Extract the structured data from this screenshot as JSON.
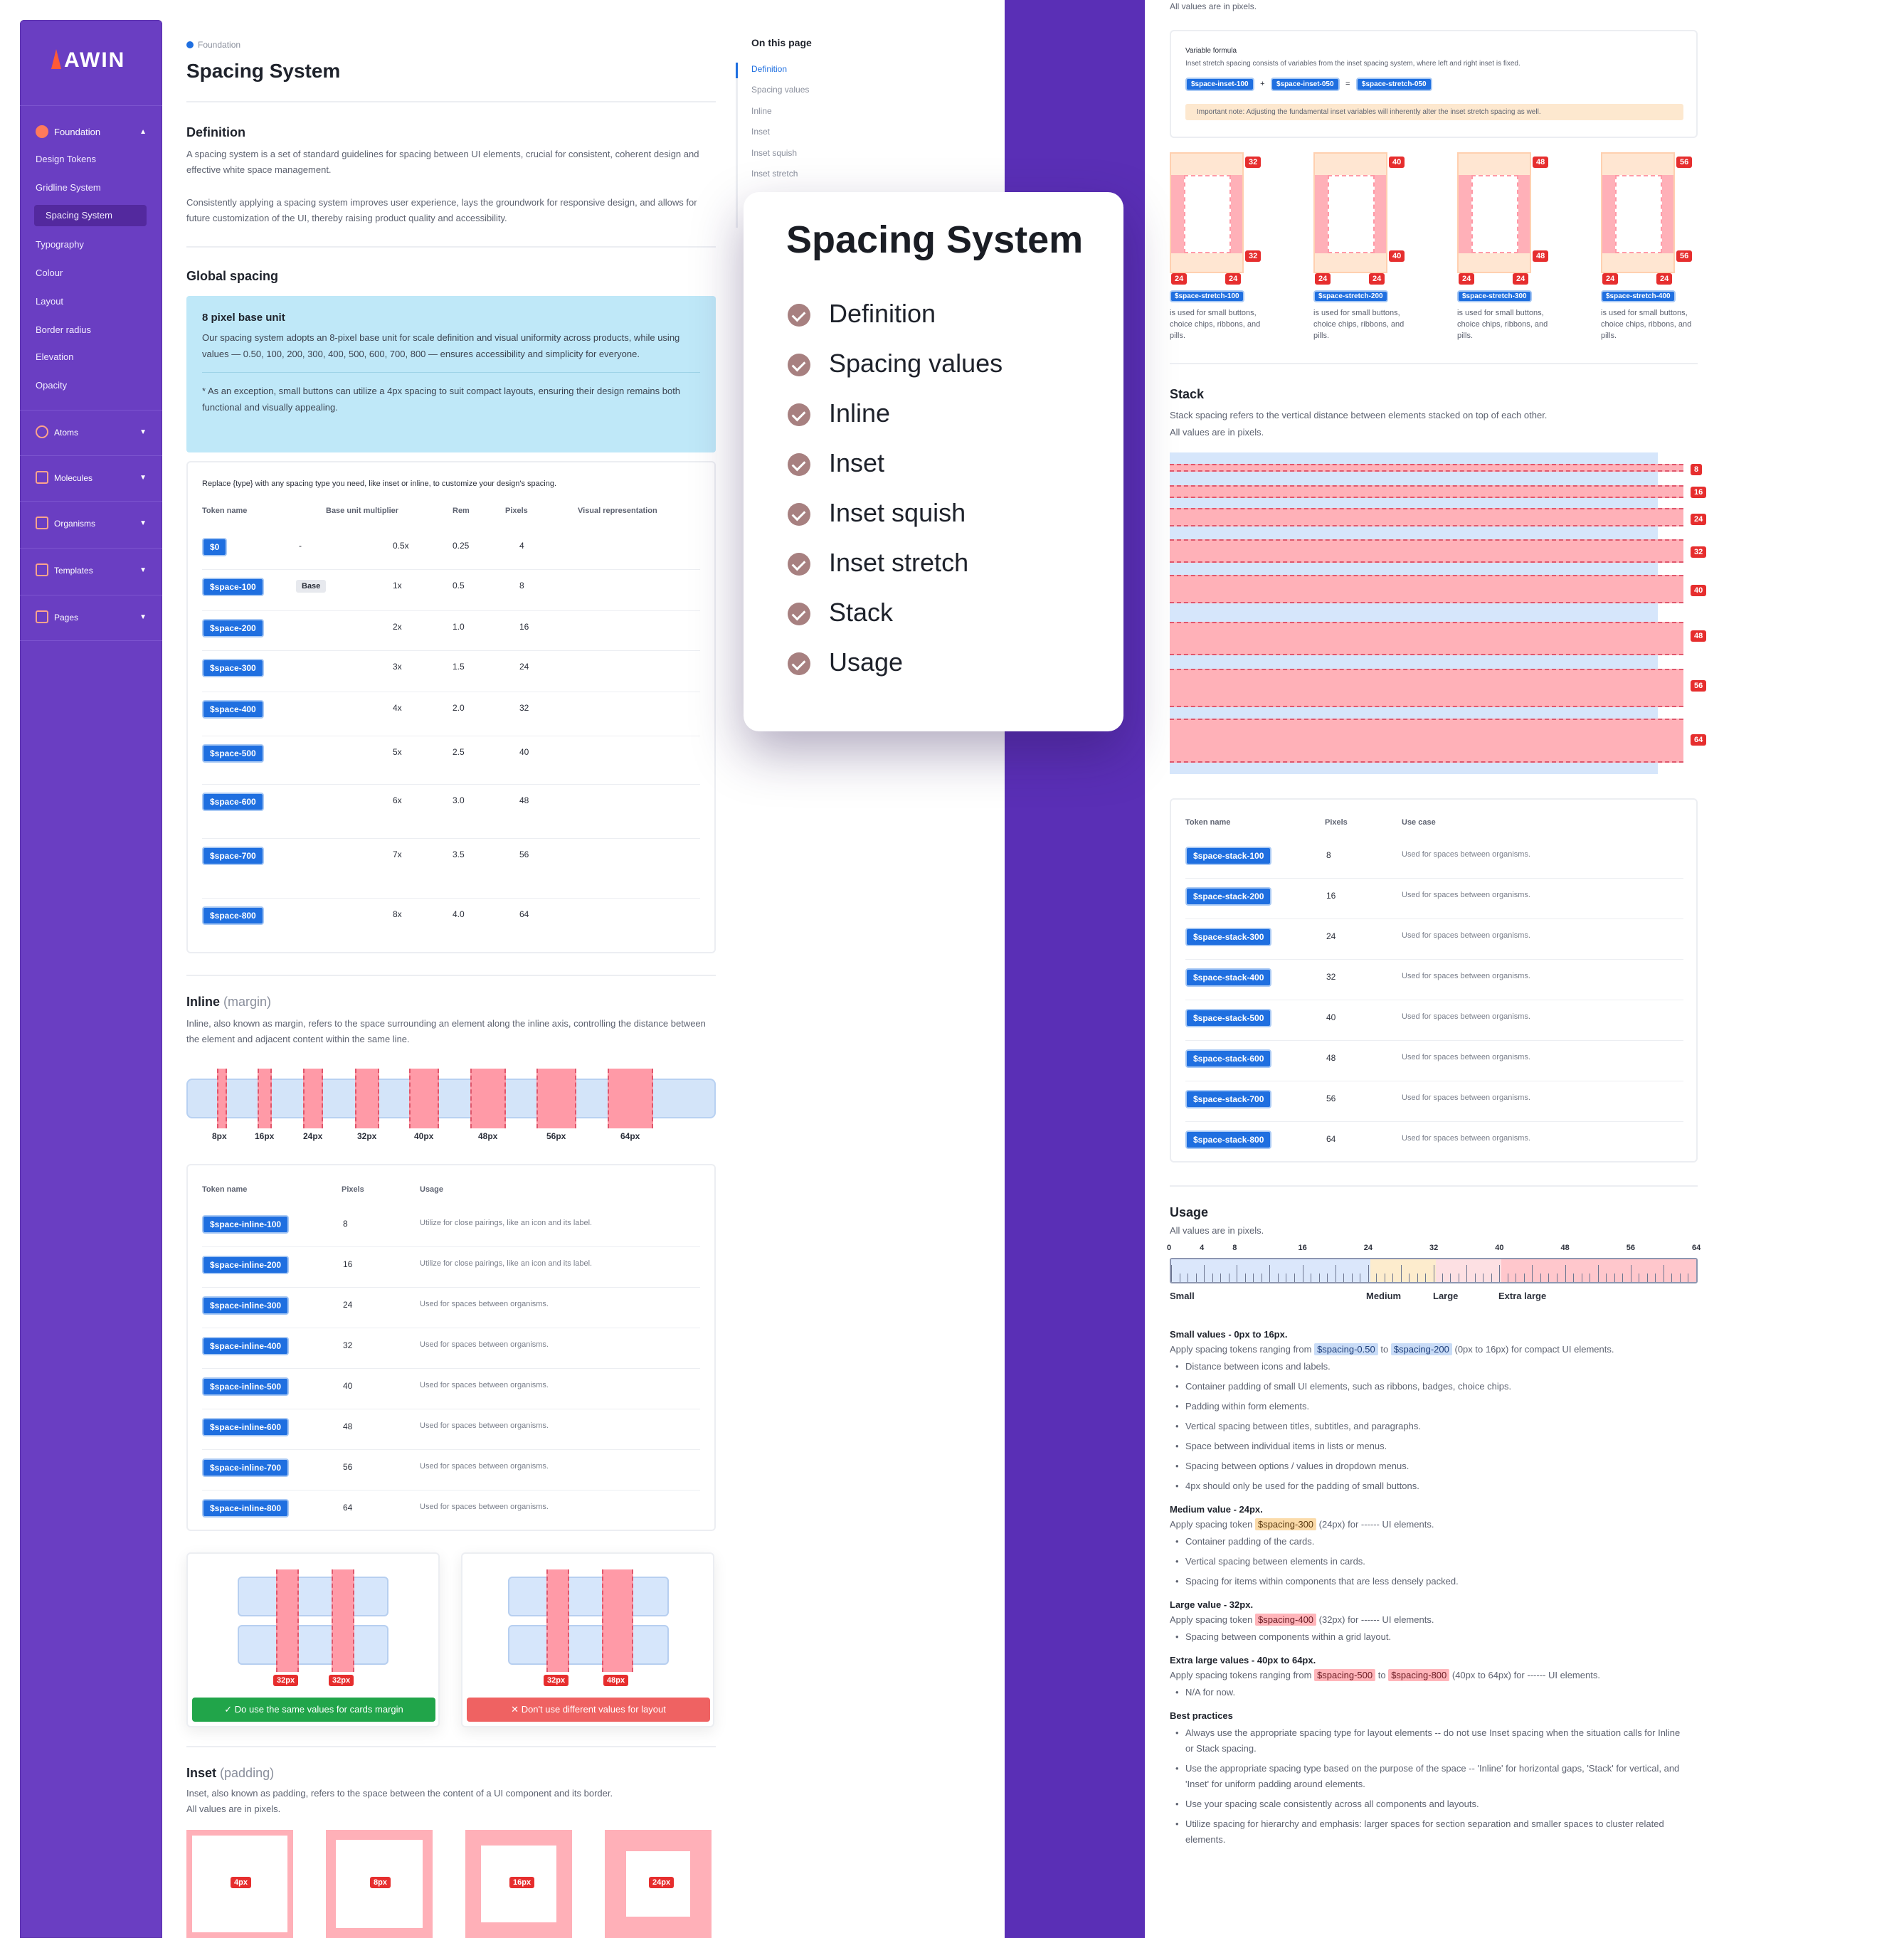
{
  "sidebar": {
    "logo": "AWIN",
    "foundation": "Foundation",
    "items": [
      "Design Tokens",
      "Gridline System",
      "Spacing System",
      "Typography",
      "Colour",
      "Layout",
      "Border radius",
      "Elevation",
      "Opacity"
    ],
    "groups": [
      "Atoms",
      "Molecules",
      "Organisms",
      "Templates",
      "Pages"
    ]
  },
  "breadcrumb": "Foundation",
  "title": "Spacing System",
  "definition": {
    "heading": "Definition",
    "p1": "A spacing system is a set of standard guidelines for spacing between UI elements, crucial for consistent, coherent design and effective white space management.",
    "p2": "Consistently applying a spacing system improves user experience, lays the groundwork for responsive design, and allows for future customization of the UI, thereby raising product quality and accessibility."
  },
  "global": {
    "heading": "Global spacing",
    "info_title": "8 pixel base unit",
    "info_body": "Our spacing system adopts an 8-pixel base unit for scale definition and visual uniformity across products, while using values — 0.50, 100, 200, 300, 400, 500, 600, 700, 800 — ensures accessibility and simplicity for everyone.",
    "info_note": "* As an exception, small buttons can utilize a 4px spacing to suit compact layouts, ensuring their design remains both functional and visually appealing.",
    "table_intro": "Replace {type} with any spacing type you need, like inset or inline, to customize your design's spacing.",
    "headers": [
      "Token name",
      "Base unit multiplier",
      "Rem",
      "Pixels",
      "Visual representation"
    ],
    "rows": [
      [
        "$0",
        "-",
        "0.5x",
        "0.25",
        "4"
      ],
      [
        "$space-100",
        "Base",
        "1x",
        "0.5",
        "8"
      ],
      [
        "$space-200",
        "",
        "2x",
        "1.0",
        "16"
      ],
      [
        "$space-300",
        "",
        "3x",
        "1.5",
        "24"
      ],
      [
        "$space-400",
        "",
        "4x",
        "2.0",
        "32"
      ],
      [
        "$space-500",
        "",
        "5x",
        "2.5",
        "40"
      ],
      [
        "$space-600",
        "",
        "6x",
        "3.0",
        "48"
      ],
      [
        "$space-700",
        "",
        "7x",
        "3.5",
        "56"
      ],
      [
        "$space-800",
        "",
        "8x",
        "4.0",
        "64"
      ]
    ]
  },
  "inline": {
    "heading": "Inline",
    "heading_muted": "(margin)",
    "desc": "Inline, also known as margin, refers to the space surrounding an element along the inline axis, controlling the distance between the element and adjacent content within the same line.",
    "labels": [
      "8px",
      "16px",
      "24px",
      "32px",
      "40px",
      "48px",
      "56px",
      "64px"
    ],
    "headers": [
      "Token name",
      "Pixels",
      "Usage"
    ],
    "rows": [
      [
        "$space-inline-100",
        "8",
        "Utilize for close pairings, like an icon and its label."
      ],
      [
        "$space-inline-200",
        "16",
        "Utilize for close pairings, like an icon and its label."
      ],
      [
        "$space-inline-300",
        "24",
        "Used for spaces between organisms."
      ],
      [
        "$space-inline-400",
        "32",
        "Used for spaces between organisms."
      ],
      [
        "$space-inline-500",
        "40",
        "Used for spaces between organisms."
      ],
      [
        "$space-inline-600",
        "48",
        "Used for spaces between organisms."
      ],
      [
        "$space-inline-700",
        "56",
        "Used for spaces between organisms."
      ],
      [
        "$space-inline-800",
        "64",
        "Used for spaces between organisms."
      ]
    ],
    "do": "Do use the same values for cards margin",
    "dont": "Don't use different values for layout",
    "do_tags": [
      "32px",
      "32px"
    ],
    "dont_tags": [
      "32px",
      "48px"
    ]
  },
  "inset": {
    "heading": "Inset",
    "heading_muted": "(padding)",
    "desc1": "Inset, also known as padding, refers to the space between the content of a UI component and its border.",
    "desc2": "All values are in pixels.",
    "labels": [
      "4px",
      "8px",
      "16px",
      "24px"
    ]
  },
  "otp": {
    "heading": "On this page",
    "items": [
      "Definition",
      "Spacing values",
      "Inline",
      "Inset",
      "Inset squish",
      "Inset stretch"
    ]
  },
  "popup": {
    "title": "Spacing System",
    "items": [
      "Definition",
      "Spacing values",
      "Inline",
      "Inset",
      "Inset squish",
      "Inset stretch",
      "Stack",
      "Usage"
    ]
  },
  "right": {
    "top_note": "All values are in pixels.",
    "formula": {
      "label": "Variable formula",
      "desc": "Inset stretch spacing consists of variables from the inset spacing system, where left and right inset is fixed.",
      "tokens": [
        "$space-inset-100",
        "+",
        "$space-inset-050",
        "=",
        "$space-stretch-050"
      ],
      "note": "Important note: Adjusting the fundamental inset variables will inherently alter the inset stretch spacing as well."
    },
    "stretch": [
      {
        "top": "32",
        "mid": "32",
        "l": "24",
        "r": "24",
        "token": "$space-stretch-100",
        "desc": "is used for small buttons, choice chips, ribbons, and pills."
      },
      {
        "top": "40",
        "mid": "40",
        "l": "24",
        "r": "24",
        "token": "$space-stretch-200",
        "desc": "is used for small buttons, choice chips, ribbons, and pills."
      },
      {
        "top": "48",
        "mid": "48",
        "l": "24",
        "r": "24",
        "token": "$space-stretch-300",
        "desc": "is used for small buttons, choice chips, ribbons, and pills."
      },
      {
        "top": "56",
        "mid": "56",
        "l": "24",
        "r": "24",
        "token": "$space-stretch-400",
        "desc": "is used for small buttons, choice chips, ribbons, and pills."
      }
    ],
    "stack": {
      "heading": "Stack",
      "desc1": "Stack spacing refers to the vertical distance between elements stacked on top of each other.",
      "desc2": "All values are in pixels.",
      "tags": [
        "8",
        "16",
        "24",
        "32",
        "40",
        "48",
        "56",
        "64"
      ],
      "headers": [
        "Token name",
        "Pixels",
        "Use case"
      ],
      "rows": [
        [
          "$space-stack-100",
          "8",
          "Used for spaces between organisms."
        ],
        [
          "$space-stack-200",
          "16",
          "Used for spaces between organisms."
        ],
        [
          "$space-stack-300",
          "24",
          "Used for spaces between organisms."
        ],
        [
          "$space-stack-400",
          "32",
          "Used for spaces between organisms."
        ],
        [
          "$space-stack-500",
          "40",
          "Used for spaces between organisms."
        ],
        [
          "$space-stack-600",
          "48",
          "Used for spaces between organisms."
        ],
        [
          "$space-stack-700",
          "56",
          "Used for spaces between organisms."
        ],
        [
          "$space-stack-800",
          "64",
          "Used for spaces between organisms."
        ]
      ]
    },
    "usage": {
      "heading": "Usage",
      "desc": "All values are in pixels.",
      "ticks": [
        "0",
        "4",
        "8",
        "16",
        "24",
        "32",
        "40",
        "48",
        "56",
        "64"
      ],
      "zones": [
        "Small",
        "Medium",
        "Large",
        "Extra large"
      ],
      "small_h": "Small values - 0px to 16px.",
      "small_p": [
        "Apply spacing tokens ranging from ",
        "$spacing-0.50",
        " to ",
        "$spacing-200",
        " (0px to 16px) for compact UI elements."
      ],
      "small_b": [
        "Distance between icons and labels.",
        "Container padding of small UI elements, such as ribbons, badges, choice chips.",
        "Padding within form elements.",
        "Vertical spacing between titles, subtitles, and paragraphs.",
        "Space between individual items in lists or menus.",
        "Spacing between options / values in dropdown menus.",
        "4px should only be used for the padding of small buttons."
      ],
      "med_h": "Medium value - 24px.",
      "med_p": [
        "Apply spacing token ",
        "$spacing-300",
        " (24px) for ------ UI elements."
      ],
      "med_b": [
        "Container padding of the cards.",
        "Vertical spacing between elements in cards.",
        "Spacing for items within components that are less densely packed."
      ],
      "large_h": "Large value - 32px.",
      "large_p": [
        "Apply spacing token ",
        "$spacing-400",
        " (32px) for ------ UI elements."
      ],
      "large_b": [
        "Spacing between components within a grid layout."
      ],
      "xl_h": "Extra large values - 40px to 64px.",
      "xl_p": [
        "Apply spacing tokens ranging from ",
        "$spacing-500",
        " to ",
        "$spacing-800",
        " (40px to 64px) for ------ UI elements."
      ],
      "xl_b": [
        "N/A for now."
      ],
      "bp_h": "Best practices",
      "bp_b": [
        "Always use the appropriate spacing type for layout elements -- do not use Inset spacing when the situation calls for Inline or Stack spacing.",
        "Use the appropriate spacing type based on the purpose of the space -- 'Inline' for horizontal gaps, 'Stack' for vertical, and 'Inset' for uniform padding around elements.",
        "Use your spacing scale consistently across all components and layouts.",
        "Utilize spacing for hierarchy and emphasis: larger spaces for section separation and smaller spaces to cluster related elements."
      ]
    }
  }
}
